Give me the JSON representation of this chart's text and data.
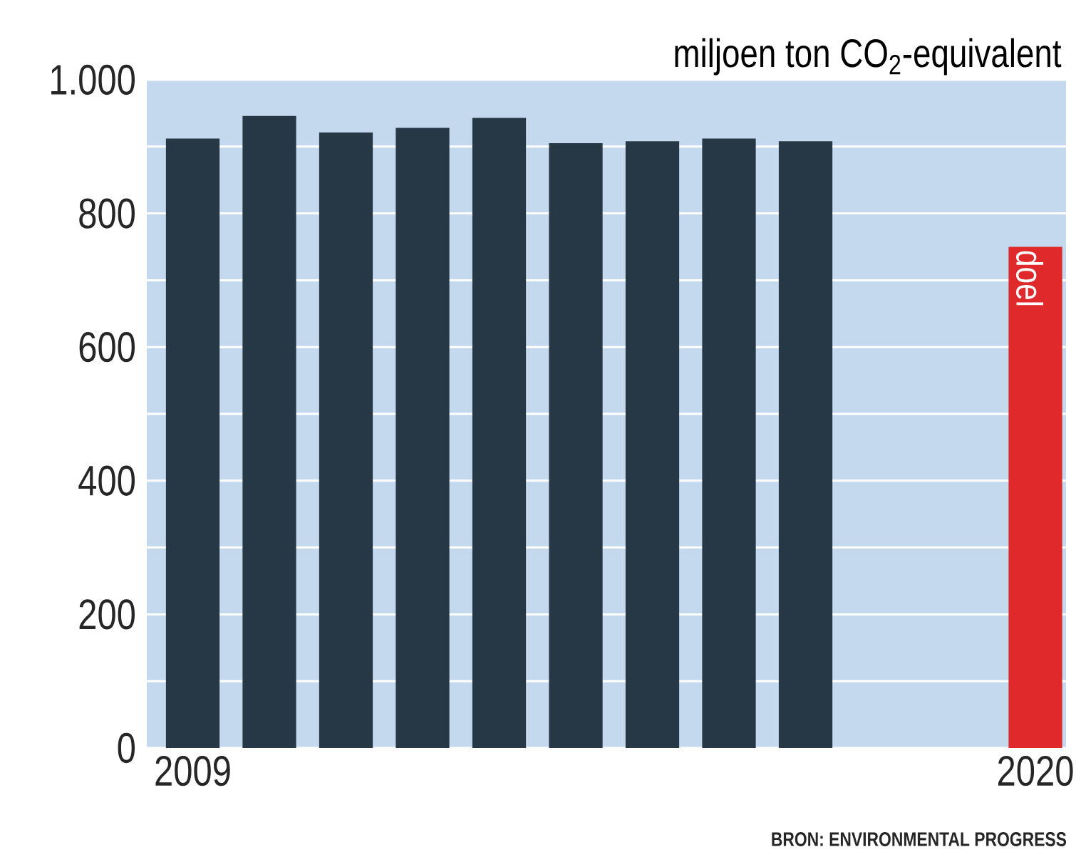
{
  "chart_data": {
    "type": "bar",
    "ylabel": "miljoen ton CO$_{2}$-equivalent",
    "categories": [
      "2009",
      null,
      null,
      null,
      null,
      null,
      null,
      null,
      null,
      null,
      null,
      "2020"
    ],
    "values": [
      912,
      946,
      921,
      928,
      943,
      905,
      908,
      912,
      908,
      null,
      null,
      750
    ],
    "colors": [
      "#263845",
      "#263845",
      "#263845",
      "#263845",
      "#263845",
      "#263845",
      "#263845",
      "#263845",
      "#263845",
      null,
      null,
      "#e0292b"
    ],
    "ylim": [
      0,
      1000
    ],
    "yticks": [
      0,
      {
        "value": 100,
        "label": null
      },
      200,
      {
        "value": 300,
        "label": null
      },
      400,
      {
        "value": 500,
        "label": null
      },
      600,
      {
        "value": 700,
        "label": null
      },
      800,
      {
        "value": 900,
        "label": null
      },
      {
        "value": 1000,
        "label": "1.000"
      }
    ],
    "grid": "y",
    "annotations": [
      {
        "text": "doel",
        "x": "2020",
        "y": 750
      },
      "BRON: ENVIRONMENTAL PROGRESS"
    ]
  }
}
